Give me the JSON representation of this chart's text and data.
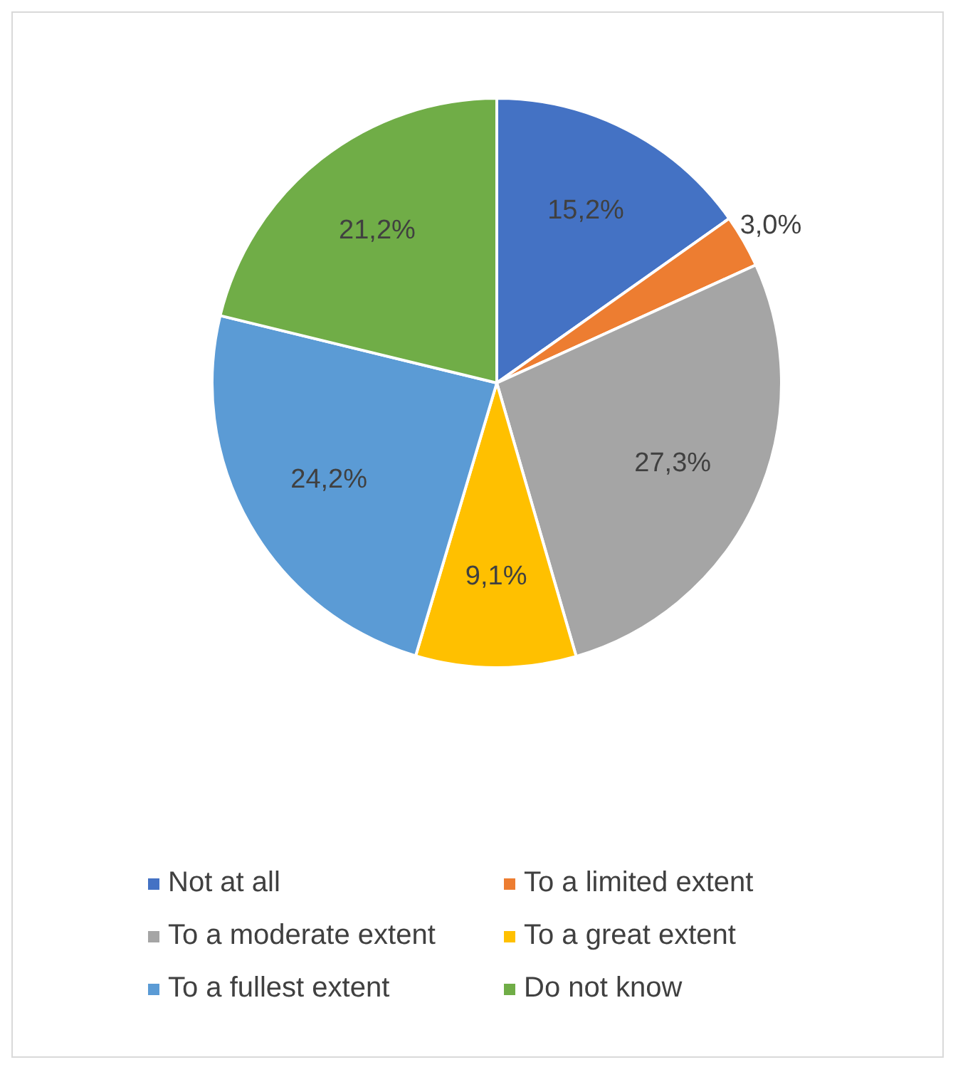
{
  "chart_data": {
    "type": "pie",
    "categories": [
      "Not at all",
      "To a limited extent",
      "To a moderate extent",
      "To a great extent",
      "To a fullest extent",
      "Do not know"
    ],
    "values": [
      15.2,
      3.0,
      27.3,
      9.1,
      24.2,
      21.2
    ],
    "colors": [
      "#4472c4",
      "#ed7d31",
      "#a5a5a5",
      "#ffc000",
      "#5b9bd5",
      "#70ad47"
    ],
    "value_labels": [
      "15,2%",
      "3,0%",
      "27,3%",
      "9,1%",
      "24,2%",
      "21,2%"
    ],
    "legend": "bottom"
  }
}
